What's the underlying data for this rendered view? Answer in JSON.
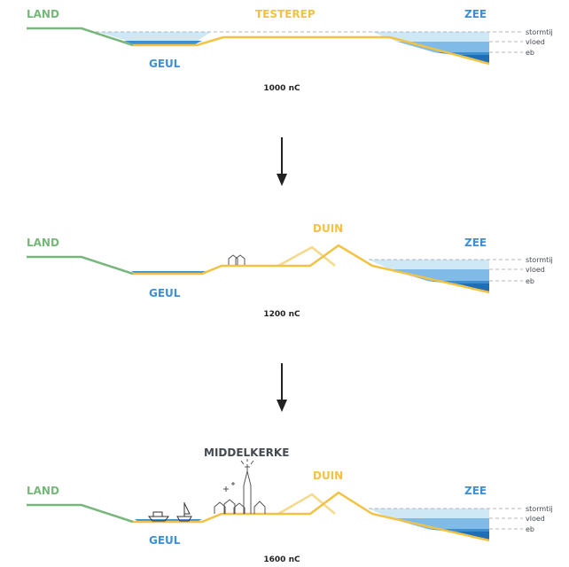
{
  "colors": {
    "land": "#78b77b",
    "sand": "#f3c242",
    "sand_light": "#f6d98a",
    "water_text": "#3e8fd3",
    "sea_light": "#cfe8f5",
    "sea_mid": "#7fbbe6",
    "sea_deep": "#3b8fd0",
    "sea_dark": "#1f6fb6",
    "dark": "#222222",
    "grey_text": "#444a52",
    "dash": "#888888"
  },
  "panels": [
    {
      "labels": {
        "land": "LAND",
        "zee": "ZEE",
        "geul": "GEUL",
        "top": "TESTEREP"
      },
      "levels": [
        "stormtij",
        "vloed",
        "eb"
      ],
      "date": "1000 nC"
    },
    {
      "labels": {
        "land": "LAND",
        "zee": "ZEE",
        "geul": "GEUL",
        "top": "DUIN"
      },
      "levels": [
        "stormtij",
        "vloed",
        "eb"
      ],
      "date": "1200 nC"
    },
    {
      "labels": {
        "land": "LAND",
        "zee": "ZEE",
        "geul": "GEUL",
        "top": "DUIN",
        "town": "MIDDELKERKE"
      },
      "levels": [
        "stormtij",
        "vloed",
        "eb"
      ],
      "date": "1600 nC"
    }
  ],
  "icons": {
    "house": "house-icon",
    "boat": "boat-icon",
    "sailboat": "sailboat-icon",
    "church": "church-icon",
    "arrow": "arrow-down-icon"
  }
}
